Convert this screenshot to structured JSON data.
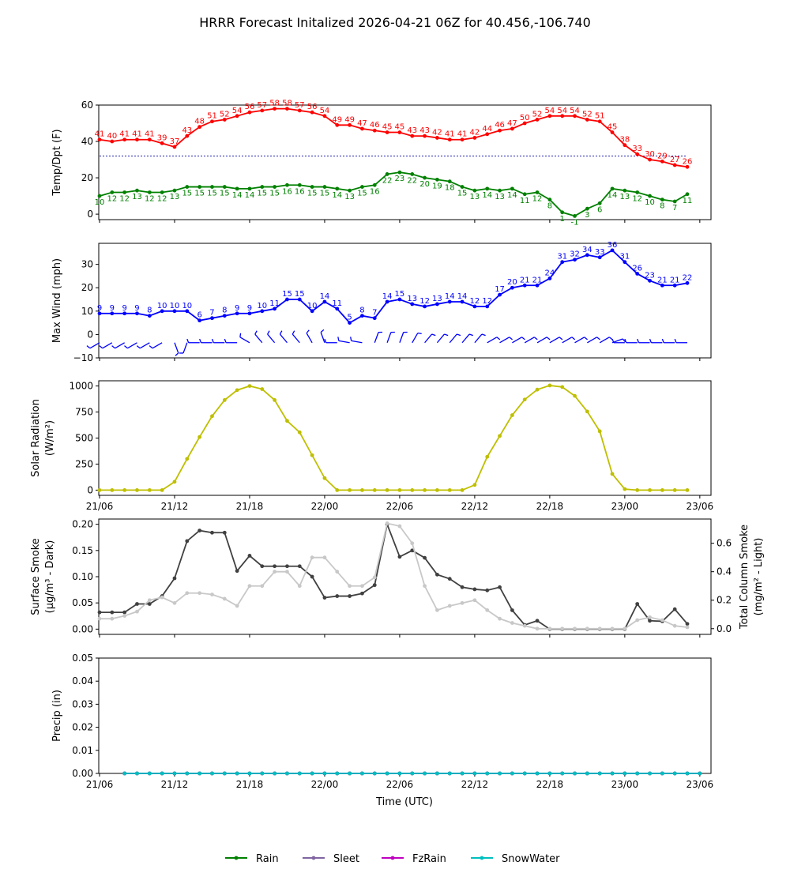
{
  "title": "HRRR Forecast Initalized 2026-04-21 06Z for 40.456,-106.740",
  "x_tick_labels": [
    "21/06",
    "21/12",
    "21/18",
    "22/00",
    "22/06",
    "22/12",
    "22/18",
    "23/00",
    "23/06"
  ],
  "xlabel": "Time (UTC)",
  "chart_data": [
    {
      "type": "line",
      "id": "temp",
      "ylabel": "Temp/Dpt (F)",
      "ylim": [
        -3,
        60
      ],
      "yticks": [
        "0",
        "20",
        "40",
        "60"
      ],
      "reference_line": 32,
      "series": [
        {
          "name": "Temperature",
          "color": "#ff0000",
          "values": [
            41,
            40,
            41,
            41,
            41,
            39,
            37,
            43,
            48,
            51,
            52,
            54,
            56,
            57,
            58,
            58,
            57,
            56,
            54,
            49,
            49,
            47,
            46,
            45,
            45,
            43,
            43,
            42,
            41,
            41,
            42,
            44,
            46,
            47,
            50,
            52,
            54,
            54,
            54,
            52,
            51,
            45,
            38,
            33,
            30,
            29,
            27,
            26
          ],
          "labels": [
            "41",
            "40",
            "41",
            "41",
            "41",
            "39",
            "37",
            "43",
            "48",
            "51",
            "52",
            "54",
            "56",
            "57",
            "58",
            "58",
            "57",
            "56",
            "54",
            "49",
            "49",
            "47",
            "46",
            "45",
            "45",
            "43",
            "43",
            "42",
            "41",
            "41",
            "42",
            "44",
            "46",
            "47",
            "50",
            "52",
            "54",
            "54",
            "54",
            "52",
            "51",
            "45",
            "38",
            "33",
            "30",
            "29",
            "27",
            "26"
          ]
        },
        {
          "name": "Dewpoint",
          "color": "#008000",
          "values": [
            10,
            12,
            12,
            13,
            12,
            12,
            13,
            15,
            15,
            15,
            15,
            14,
            14,
            15,
            15,
            16,
            16,
            15,
            15,
            14,
            13,
            15,
            16,
            22,
            23,
            22,
            20,
            19,
            18,
            15,
            13,
            14,
            13,
            14,
            11,
            12,
            8,
            1,
            -1,
            3,
            6,
            14,
            13,
            12,
            10,
            8,
            7,
            11
          ],
          "labels": [
            "10",
            "12",
            "12",
            "13",
            "12",
            "12",
            "13",
            "15",
            "15",
            "15",
            "15",
            "14",
            "14",
            "15",
            "15",
            "16",
            "16",
            "15",
            "15",
            "14",
            "13",
            "15",
            "16",
            "22",
            "23",
            "22",
            "20",
            "19",
            "18",
            "15",
            "13",
            "14",
            "13",
            "14",
            "11",
            "12",
            "8",
            "1",
            "-1",
            "3",
            "6",
            "14",
            "13",
            "12",
            "10",
            "8",
            "7",
            "11"
          ]
        }
      ]
    },
    {
      "type": "line",
      "id": "wind",
      "ylabel": "Max Wind (mph)",
      "ylim": [
        -10,
        39
      ],
      "yticks": [
        "−10",
        "0",
        "10",
        "20",
        "30"
      ],
      "series": [
        {
          "name": "Max Wind",
          "color": "#0000ff",
          "values": [
            9,
            9,
            9,
            9,
            8,
            10,
            10,
            10,
            6,
            7,
            8,
            9,
            9,
            10,
            11,
            15,
            15,
            10,
            14,
            11,
            5,
            8,
            7,
            14,
            15,
            13,
            12,
            13,
            14,
            14,
            12,
            12,
            17,
            20,
            21,
            21,
            24,
            31,
            32,
            34,
            33,
            36,
            31,
            26,
            23,
            21,
            21,
            22
          ],
          "labels": [
            "9",
            "9",
            "9",
            "9",
            "8",
            "10",
            "10",
            "10",
            "6",
            "7",
            "8",
            "9",
            "9",
            "10",
            "11",
            "15",
            "15",
            "10",
            "14",
            "11",
            "5",
            "8",
            "7",
            "14",
            "15",
            "13",
            "12",
            "13",
            "14",
            "14",
            "12",
            "12",
            "17",
            "20",
            "21",
            "21",
            "24",
            "31",
            "32",
            "34",
            "33",
            "36",
            "31",
            "26",
            "23",
            "21",
            "21",
            "22"
          ]
        }
      ],
      "wind_directions_deg": [
        240,
        240,
        240,
        240,
        240,
        240,
        160,
        200,
        270,
        270,
        270,
        270,
        300,
        320,
        320,
        320,
        320,
        330,
        340,
        270,
        280,
        280,
        20,
        20,
        20,
        30,
        40,
        40,
        40,
        40,
        40,
        60,
        60,
        60,
        60,
        60,
        60,
        60,
        60,
        60,
        60,
        70,
        270,
        270,
        270,
        270,
        270,
        270
      ]
    },
    {
      "type": "line",
      "id": "solar",
      "ylabel": "Solar Radiation",
      "ylabel2": "(W/m²)",
      "ylim": [
        -50,
        1050
      ],
      "yticks": [
        "0",
        "250",
        "500",
        "750",
        "1000"
      ],
      "series": [
        {
          "name": "Solar Radiation",
          "color": "#bfbf00",
          "values": [
            0,
            0,
            0,
            0,
            0,
            0,
            80,
            300,
            510,
            710,
            865,
            960,
            1000,
            970,
            865,
            665,
            555,
            335,
            115,
            0,
            0,
            0,
            0,
            0,
            0,
            0,
            0,
            0,
            0,
            0,
            50,
            320,
            520,
            720,
            870,
            965,
            1005,
            990,
            905,
            755,
            565,
            155,
            10,
            0,
            0,
            0,
            0,
            0
          ]
        }
      ]
    },
    {
      "type": "line",
      "id": "smoke",
      "ylabel": "Surface Smoke",
      "ylabel2": "(μg/m³ - Dark)",
      "ylabel_right": "Total Column Smoke",
      "ylabel_right2": "(mg/m² - Light)",
      "ylim": [
        -0.01,
        0.21
      ],
      "yticks": [
        "0.00",
        "0.05",
        "0.10",
        "0.15",
        "0.20"
      ],
      "ylim_right": [
        -0.04,
        0.77
      ],
      "yticks_right": [
        "0.0",
        "0.2",
        "0.4",
        "0.6"
      ],
      "series": [
        {
          "name": "Surface Smoke",
          "color": "#404040",
          "values": [
            0.032,
            0.032,
            0.032,
            0.048,
            0.048,
            0.063,
            0.097,
            0.168,
            0.188,
            0.184,
            0.184,
            0.111,
            0.14,
            0.12,
            0.12,
            0.12,
            0.12,
            0.1,
            0.06,
            0.063,
            0.063,
            0.068,
            0.084,
            0.2,
            0.138,
            0.15,
            0.136,
            0.104,
            0.096,
            0.08,
            0.076,
            0.074,
            0.08,
            0.036,
            0.008,
            0.016,
            0,
            0,
            0,
            0,
            0,
            0,
            0,
            0.048,
            0.016,
            0.015,
            0.038,
            0.01
          ]
        },
        {
          "name": "Total Column Smoke",
          "color": "#c8c8c8",
          "values": [
            0.07,
            0.07,
            0.09,
            0.12,
            0.2,
            0.22,
            0.18,
            0.25,
            0.25,
            0.24,
            0.21,
            0.16,
            0.3,
            0.3,
            0.4,
            0.4,
            0.3,
            0.5,
            0.5,
            0.4,
            0.3,
            0.3,
            0.36,
            0.74,
            0.72,
            0.6,
            0.3,
            0.13,
            0.16,
            0.18,
            0.2,
            0.13,
            0.07,
            0.04,
            0.02,
            0,
            0,
            0,
            0,
            0,
            0,
            0,
            0,
            0.06,
            0.08,
            0.06,
            0.02,
            0.01
          ]
        }
      ]
    },
    {
      "type": "line",
      "id": "precip",
      "ylabel": "Precip (in)",
      "ylim": [
        0,
        0.05
      ],
      "yticks": [
        "0.00",
        "0.01",
        "0.02",
        "0.03",
        "0.04",
        "0.05"
      ],
      "series": [
        {
          "name": "Rain",
          "color": "#008000",
          "values": [
            0,
            0,
            0,
            0,
            0,
            0,
            0,
            0,
            0,
            0,
            0,
            0,
            0,
            0,
            0,
            0,
            0,
            0,
            0,
            0,
            0,
            0,
            0,
            0,
            0,
            0,
            0,
            0,
            0,
            0,
            0,
            0,
            0,
            0,
            0,
            0,
            0,
            0,
            0,
            0,
            0,
            0,
            0,
            0,
            0,
            0,
            0
          ]
        },
        {
          "name": "Sleet",
          "color": "#8064a2",
          "values": [
            0,
            0,
            0,
            0,
            0,
            0,
            0,
            0,
            0,
            0,
            0,
            0,
            0,
            0,
            0,
            0,
            0,
            0,
            0,
            0,
            0,
            0,
            0,
            0,
            0,
            0,
            0,
            0,
            0,
            0,
            0,
            0,
            0,
            0,
            0,
            0,
            0,
            0,
            0,
            0,
            0,
            0,
            0,
            0,
            0,
            0,
            0
          ]
        },
        {
          "name": "FzRain",
          "color": "#c000c0",
          "values": [
            0,
            0,
            0,
            0,
            0,
            0,
            0,
            0,
            0,
            0,
            0,
            0,
            0,
            0,
            0,
            0,
            0,
            0,
            0,
            0,
            0,
            0,
            0,
            0,
            0,
            0,
            0,
            0,
            0,
            0,
            0,
            0,
            0,
            0,
            0,
            0,
            0,
            0,
            0,
            0,
            0,
            0,
            0,
            0,
            0,
            0,
            0
          ]
        },
        {
          "name": "SnowWater",
          "color": "#00bfbf",
          "values": [
            0,
            0,
            0,
            0,
            0,
            0,
            0,
            0,
            0,
            0,
            0,
            0,
            0,
            0,
            0,
            0,
            0,
            0,
            0,
            0,
            0,
            0,
            0,
            0,
            0,
            0,
            0,
            0,
            0,
            0,
            0,
            0,
            0,
            0,
            0,
            0,
            0,
            0,
            0,
            0,
            0,
            0,
            0,
            0,
            0,
            0,
            0
          ]
        }
      ]
    }
  ],
  "legend": [
    {
      "label": "Rain",
      "color": "#008000"
    },
    {
      "label": "Sleet",
      "color": "#8064a2"
    },
    {
      "label": "FzRain",
      "color": "#c000c0"
    },
    {
      "label": "SnowWater",
      "color": "#00bfbf"
    }
  ]
}
